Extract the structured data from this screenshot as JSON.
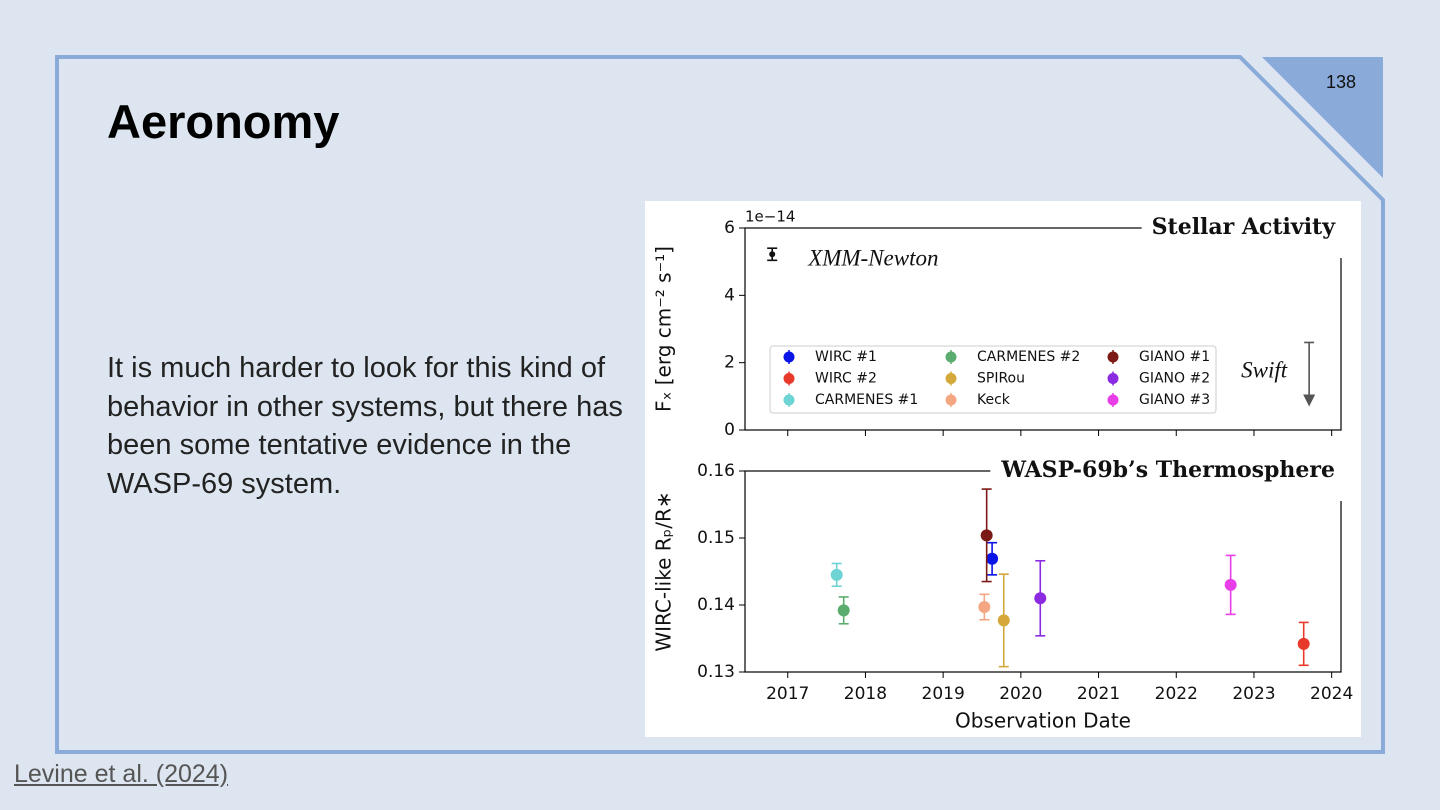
{
  "slide": {
    "title": "Aeronomy",
    "page_number": "138",
    "body": "It is much harder to look for this kind of behavior in other systems, but there has been some tentative evidence in the WASP-69 system.",
    "citation": "Levine et al. (2024)"
  },
  "chart_data": [
    {
      "type": "errorbar",
      "title": "Stellar Activity",
      "ylabel": "Fₓ [erg cm⁻² s⁻¹]",
      "y_offset_label": "1e−14",
      "xlim": [
        2016.45,
        2024.12
      ],
      "xticks": [
        2017,
        2018,
        2019,
        2020,
        2021,
        2022,
        2023,
        2024
      ],
      "ylim": [
        0,
        6
      ],
      "yticks": [
        0,
        2,
        4,
        6
      ],
      "series_labels": true,
      "series": [
        {
          "name": "XMM-Newton",
          "color": "#111111",
          "x": [
            2016.8
          ],
          "values": [
            5.22
          ],
          "errors": [
            0.18
          ]
        },
        {
          "name": "Swift",
          "color": "#555555",
          "x": [
            2023.71
          ],
          "values": [
            2.6
          ],
          "upper_limit": true
        }
      ]
    },
    {
      "type": "errorbar",
      "title": "WASP-69b’s Thermosphere",
      "ylabel": "WIRC-like Rₚ/R∗",
      "xlabel": "Observation Date",
      "xlim": [
        2016.45,
        2024.12
      ],
      "xticks": [
        2017,
        2018,
        2019,
        2020,
        2021,
        2022,
        2023,
        2024
      ],
      "ylim": [
        0.13,
        0.16
      ],
      "yticks": [
        0.13,
        0.14,
        0.15,
        0.16
      ],
      "legend": true,
      "series": [
        {
          "name": "WIRC #1",
          "color": "#0a14e6",
          "x": [
            2019.63
          ],
          "values": [
            0.1469
          ],
          "errors": [
            0.0024
          ]
        },
        {
          "name": "WIRC #2",
          "color": "#e8392b",
          "x": [
            2023.64
          ],
          "values": [
            0.1342
          ],
          "errors": [
            0.0032
          ]
        },
        {
          "name": "CARMENES #1",
          "color": "#6dd3d3",
          "x": [
            2017.63
          ],
          "values": [
            0.1445
          ],
          "errors": [
            0.0017
          ]
        },
        {
          "name": "CARMENES #2",
          "color": "#5aad6e",
          "x": [
            2017.72
          ],
          "values": [
            0.1392
          ],
          "errors": [
            0.002
          ]
        },
        {
          "name": "SPIRou",
          "color": "#d4a83a",
          "x": [
            2019.78
          ],
          "values": [
            0.1377
          ],
          "errors": [
            0.0069
          ]
        },
        {
          "name": "Keck",
          "color": "#f4a582",
          "x": [
            2019.53
          ],
          "values": [
            0.1397
          ],
          "errors": [
            0.0019
          ]
        },
        {
          "name": "GIANO #1",
          "color": "#7b1a14",
          "x": [
            2019.56
          ],
          "values": [
            0.1504
          ],
          "errors": [
            0.0069
          ]
        },
        {
          "name": "GIANO #2",
          "color": "#8a2be2",
          "x": [
            2020.25
          ],
          "values": [
            0.141
          ],
          "errors": [
            0.0056
          ]
        },
        {
          "name": "GIANO #3",
          "color": "#e83ee8",
          "x": [
            2022.7
          ],
          "values": [
            0.143
          ],
          "errors": [
            0.0044
          ]
        }
      ]
    }
  ]
}
